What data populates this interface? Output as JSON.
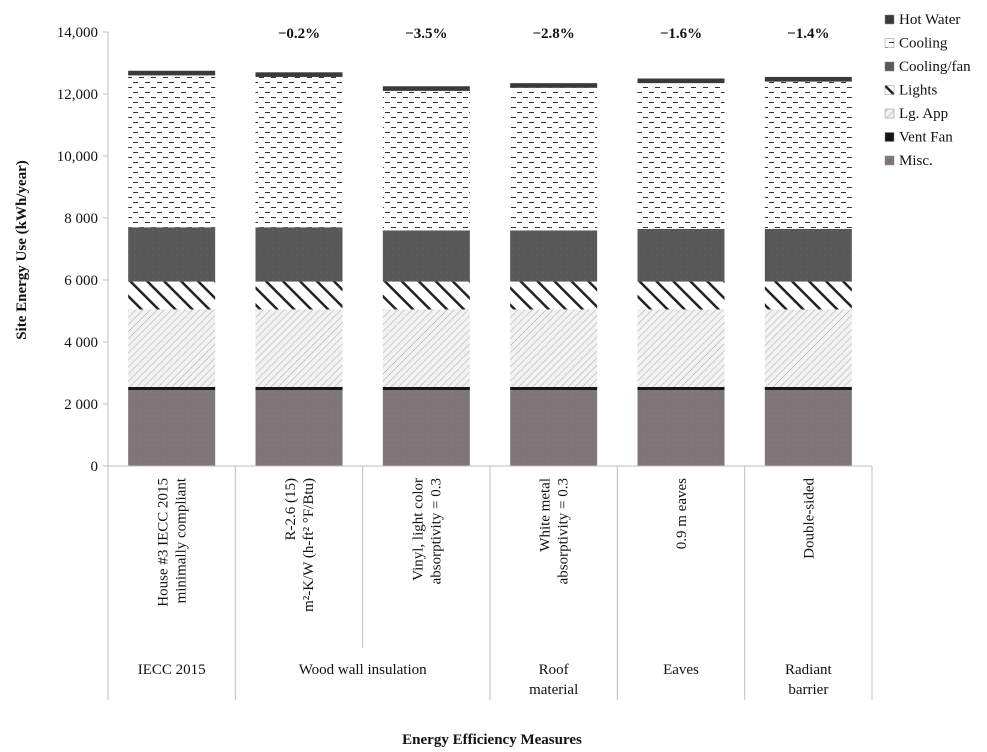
{
  "chart_data": {
    "type": "bar",
    "stacked": true,
    "ylabel": "Site Energy Use (kWh/year)",
    "xlabel": "Energy Efficiency Measures",
    "ylim": [
      0,
      14000
    ],
    "y_ticks": [
      "0",
      "2 000",
      "4 000",
      "6 000",
      "8 000",
      "10,000",
      "12,000",
      "14,000"
    ],
    "grid": false,
    "legend_position": "top-right",
    "categories": [
      [
        "House #3 IECC 2015",
        "minimally compliant"
      ],
      [
        "R-2.6 (15)",
        "m²-K/W (h-ft² °F/Btu)"
      ],
      [
        "Vinyl, light color",
        "absorptivity = 0.3"
      ],
      [
        "White metal",
        "absorptivity = 0.3"
      ],
      [
        "0.9 m eaves"
      ],
      [
        "Double-sided"
      ]
    ],
    "groups": [
      {
        "label": [
          "IECC 2015"
        ],
        "span": 1
      },
      {
        "label": [
          "Wood wall insulation"
        ],
        "span": 2
      },
      {
        "label": [
          "Roof",
          "material"
        ],
        "span": 1
      },
      {
        "label": [
          "Eaves"
        ],
        "span": 1
      },
      {
        "label": [
          "Radiant",
          "barrier"
        ],
        "span": 1
      }
    ],
    "annotations": [
      "",
      "−0.2%",
      "−3.5%",
      "−2.8%",
      "−1.6%",
      "−1.4%"
    ],
    "series": [
      {
        "name": "Misc.",
        "values": [
          2450,
          2450,
          2450,
          2450,
          2450,
          2450
        ],
        "color": "#7d7577"
      },
      {
        "name": "Vent Fan",
        "values": [
          100,
          100,
          100,
          100,
          100,
          100
        ],
        "color": "#1a1a1a"
      },
      {
        "name": "Lg. App",
        "values": [
          2500,
          2500,
          2500,
          2500,
          2500,
          2500
        ],
        "color": "#e8e8e8"
      },
      {
        "name": "Lights",
        "values": [
          900,
          900,
          900,
          900,
          900,
          900
        ],
        "color": "#ffffff"
      },
      {
        "name": "Cooling/fan",
        "values": [
          1750,
          1750,
          1650,
          1650,
          1700,
          1700
        ],
        "color": "#5a5a5a"
      },
      {
        "name": "Cooling",
        "values": [
          4900,
          4850,
          4500,
          4600,
          4700,
          4750
        ],
        "color": "#f6f6f6"
      },
      {
        "name": "Hot Water",
        "values": [
          150,
          150,
          150,
          150,
          150,
          150
        ],
        "color": "#3c3c3c"
      }
    ]
  }
}
